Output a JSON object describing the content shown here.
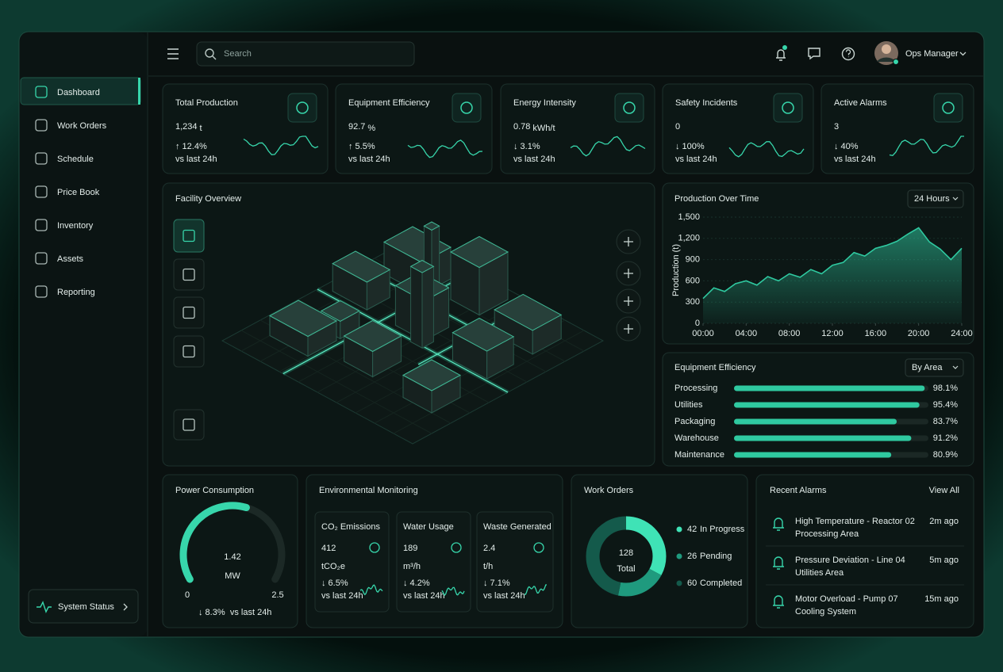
{
  "sidebar": {
    "nav": [
      "Dashboard",
      "Work Orders",
      "Schedule",
      "Price Book",
      "Inventory",
      "Assets",
      "Reporting"
    ],
    "system_status": "System Status"
  },
  "header": {
    "search": "Search",
    "user": "Ops Manager"
  },
  "kpis": [
    {
      "title": "Total Production",
      "value": "1,234",
      "unit": "t",
      "change": "↑ 12.4%",
      "period": "vs last 24h"
    },
    {
      "title": "Equipment Efficiency",
      "value": "92.7",
      "unit": "%",
      "change": "↑ 5.5%",
      "period": "vs last 24h"
    },
    {
      "title": "Energy Intensity",
      "value": "0.78",
      "unit": "kWh/t",
      "change": "↓ 3.1%",
      "period": "vs last 24h"
    },
    {
      "title": "Safety Incidents",
      "value": "0",
      "change": "↓ 100%",
      "period": "vs last 24h"
    },
    {
      "title": "Active Alarms",
      "value": "3",
      "change": "↓ 40%",
      "period": "vs last 24h"
    }
  ],
  "facility": {
    "title": "Facility Overview"
  },
  "environment": {
    "title": "Environmental Monitoring",
    "metrics": [
      {
        "name": "CO₂ Emissions",
        "value": "412",
        "unit": "tCO₂e",
        "change": "↓ 6.5%",
        "period": "vs last 24h"
      },
      {
        "name": "Water Usage",
        "value": "189",
        "unit": "m³/h",
        "change": "↓ 4.2%",
        "period": "vs last 24h"
      },
      {
        "name": "Waste Generated",
        "value": "2.4",
        "unit": "t/h",
        "change": "↓ 7.1%",
        "period": "vs last 24h"
      }
    ]
  },
  "alarms": {
    "title": "Recent Alarms",
    "view_all": "View All",
    "items": [
      {
        "title": "High Temperature - Reactor 02",
        "area": "Processing Area",
        "time": "2m ago"
      },
      {
        "title": "Pressure Deviation - Line 04",
        "area": "Utilities Area",
        "time": "5m ago"
      },
      {
        "title": "Motor Overload - Pump 07",
        "area": "Cooling System",
        "time": "15m ago"
      }
    ]
  },
  "chart_data": [
    {
      "type": "area",
      "title": "Production Over Time",
      "range": "24 Hours",
      "y_label": "Production (t)",
      "x": [
        0,
        1,
        2,
        3,
        4,
        5,
        6,
        7,
        8,
        9,
        10,
        11,
        12,
        13,
        14,
        15,
        16,
        17,
        18,
        19,
        20,
        21,
        22,
        23,
        24
      ],
      "values": [
        350,
        500,
        450,
        560,
        600,
        540,
        660,
        600,
        700,
        650,
        760,
        700,
        820,
        860,
        1000,
        950,
        1060,
        1100,
        1160,
        1260,
        1350,
        1150,
        1050,
        900,
        1060
      ],
      "color": "#2fc9a0",
      "xlim": [
        0,
        24
      ],
      "xticks": [
        {
          "value": 0,
          "label": "00:00"
        },
        {
          "value": 4,
          "label": "04:00"
        },
        {
          "value": 8,
          "label": "08:00"
        },
        {
          "value": 12,
          "label": "12:00"
        },
        {
          "value": 16,
          "label": "16:00"
        },
        {
          "value": 20,
          "label": "20:00"
        },
        {
          "value": 24,
          "label": "24:00"
        }
      ],
      "ylim": [
        0,
        1500
      ],
      "yticks": [
        0,
        300,
        600,
        900,
        {
          "value": 1200,
          "label": "1,200"
        },
        {
          "value": 1500,
          "label": "1,500"
        }
      ],
      "grid": true
    },
    {
      "type": "bar",
      "title": "Equipment Efficiency",
      "filter": "By Area",
      "horizontal": true,
      "categories": [
        "Processing",
        "Utilities",
        "Packaging",
        "Warehouse",
        "Maintenance"
      ],
      "values": [
        98.1,
        95.4,
        83.7,
        91.2,
        80.9
      ],
      "value_labels": [
        "98.1%",
        "95.4%",
        "83.7%",
        "91.2%",
        "80.9%"
      ],
      "xlim": [
        0,
        100
      ],
      "color": "#2fc9a0"
    },
    {
      "type": "gauge",
      "title": "Power Consumption",
      "value": 1.42,
      "unit": "MW",
      "ylim": [
        0,
        2.5
      ],
      "change": "↓ 8.3%",
      "period": "vs last 24h",
      "color": "#37d6ab"
    },
    {
      "type": "donut",
      "title": "Work Orders",
      "total": 128,
      "total_label": "Total",
      "categories": [
        "In Progress",
        "Pending",
        "Completed"
      ],
      "values": [
        42,
        26,
        60
      ],
      "colors": [
        "#3fe3b6",
        "#1f9a7e",
        "#145a4b"
      ]
    }
  ]
}
